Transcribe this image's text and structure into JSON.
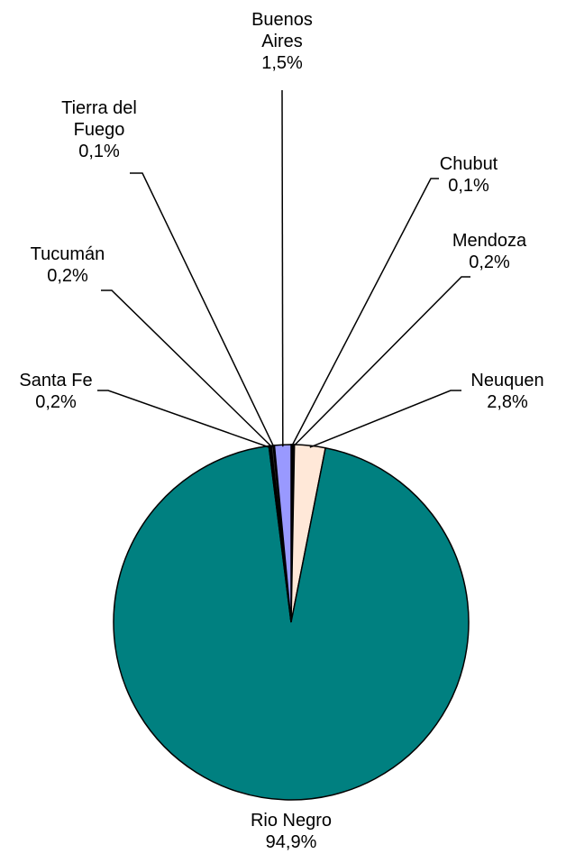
{
  "chart_data": {
    "type": "pie",
    "categories": [
      "Chubut",
      "Mendoza",
      "Neuquen",
      "Rio Negro",
      "Santa Fe",
      "Tucumán",
      "Tierra del Fuego",
      "Buenos Aires"
    ],
    "values": [
      0.1,
      0.2,
      2.8,
      94.9,
      0.2,
      0.2,
      0.1,
      1.5
    ],
    "value_labels": [
      "0,1%",
      "0,2%",
      "2,8%",
      "94,9%",
      "0,2%",
      "0,2%",
      "0,1%",
      "1,5%"
    ],
    "colors": [
      "#000080",
      "#000000",
      "#FFE8D8",
      "#008080",
      "#000000",
      "#333333",
      "#000000",
      "#9999FF"
    ]
  }
}
